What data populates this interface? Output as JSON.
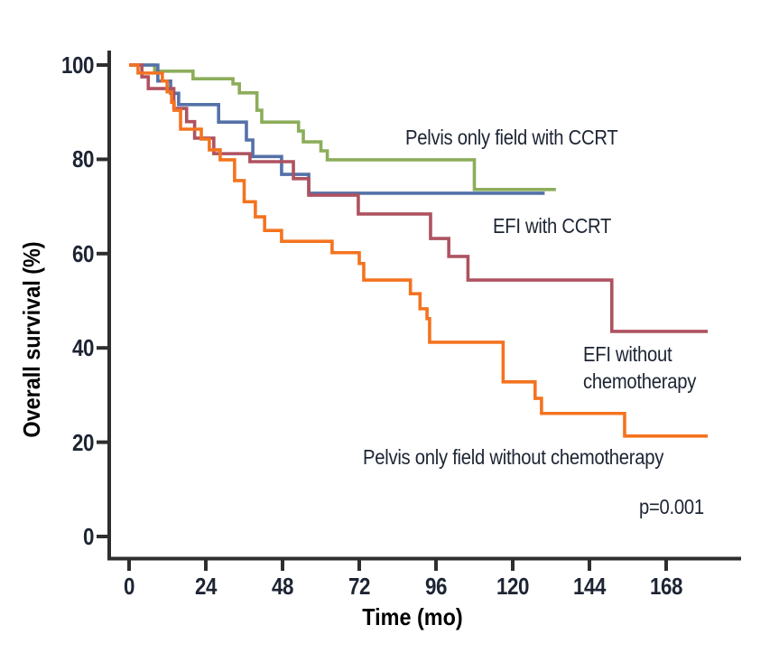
{
  "figure": {
    "background": "#ffffff",
    "text_color": "#1d2433",
    "axis_color": "#2e2e2e"
  },
  "chart_data": {
    "type": "line",
    "variant": "kaplan_meier_step",
    "title": "",
    "xlabel": "Time (mo)",
    "ylabel": "Overall survival (%)",
    "x_units": "months",
    "y_units": "percent",
    "xlim": [
      0,
      192
    ],
    "ylim": [
      0,
      100
    ],
    "xticks": [
      0,
      24,
      48,
      72,
      96,
      120,
      144,
      168
    ],
    "yticks": [
      0,
      20,
      40,
      60,
      80,
      100
    ],
    "grid": false,
    "legend_position": "inline-annotations",
    "p_value": "p=0.001",
    "series": [
      {
        "name": "Pelvis only field with CCRT",
        "slug": "pelvis-only-field-with-ccrt",
        "color": "#8CAD5A",
        "points": [
          [
            0,
            100
          ],
          [
            8,
            98.7
          ],
          [
            20,
            97.1
          ],
          [
            32.5,
            96
          ],
          [
            34.5,
            94.1
          ],
          [
            40,
            90.4
          ],
          [
            41.5,
            87.9
          ],
          [
            53,
            86
          ],
          [
            54.5,
            83.7
          ],
          [
            60,
            81.8
          ],
          [
            62,
            79.9
          ],
          [
            108,
            73.6
          ],
          [
            133.5,
            73.6
          ]
        ]
      },
      {
        "name": "EFI with CCRT",
        "slug": "efi-with-ccrt",
        "color": "#5471A8",
        "points": [
          [
            0,
            100
          ],
          [
            9,
            96.6
          ],
          [
            13,
            94
          ],
          [
            15.5,
            91.6
          ],
          [
            28,
            87.9
          ],
          [
            36.7,
            84.1
          ],
          [
            38.7,
            80.6
          ],
          [
            47.7,
            76.8
          ],
          [
            56.2,
            72.8
          ],
          [
            130,
            72.8
          ]
        ]
      },
      {
        "name": "EFI without chemotherapy",
        "slug": "efi-without-chemotherapy",
        "color": "#AF5260",
        "points": [
          [
            0,
            100
          ],
          [
            4,
            97.5
          ],
          [
            6,
            95
          ],
          [
            14,
            90.8
          ],
          [
            18,
            88
          ],
          [
            20.5,
            84.5
          ],
          [
            26.5,
            81.2
          ],
          [
            37.8,
            79.5
          ],
          [
            51.4,
            75.9
          ],
          [
            56.2,
            72.4
          ],
          [
            71.7,
            68.4
          ],
          [
            94.3,
            63.2
          ],
          [
            100,
            59.4
          ],
          [
            106,
            54.4
          ],
          [
            151,
            43.5
          ],
          [
            181,
            43.5
          ]
        ]
      },
      {
        "name": "Pelvis only field without chemotherapy",
        "slug": "pelvis-only-field-without-chemotherapy",
        "color": "#F4731F",
        "points": [
          [
            0,
            100
          ],
          [
            2.8,
            98.3
          ],
          [
            10.4,
            96.6
          ],
          [
            11.9,
            94.3
          ],
          [
            13.3,
            92.1
          ],
          [
            14.1,
            90.4
          ],
          [
            16.1,
            86.4
          ],
          [
            22.6,
            84.3
          ],
          [
            25.1,
            82
          ],
          [
            28.5,
            79.9
          ],
          [
            33,
            75.5
          ],
          [
            36,
            71
          ],
          [
            39.5,
            67.8
          ],
          [
            42.4,
            64.9
          ],
          [
            47.7,
            62.6
          ],
          [
            63.5,
            60.2
          ],
          [
            72,
            57.9
          ],
          [
            73.4,
            54.4
          ],
          [
            88,
            51.5
          ],
          [
            91,
            48.3
          ],
          [
            93.2,
            46.2
          ],
          [
            94,
            41.2
          ],
          [
            117,
            32.8
          ],
          [
            127,
            29.3
          ],
          [
            129,
            26.1
          ],
          [
            155,
            21.3
          ],
          [
            181,
            21.3
          ]
        ]
      }
    ],
    "annotations": [
      {
        "slug": "pelvis-only-field-with-ccrt",
        "text": "Pelvis only field with CCRT",
        "x": 86.4,
        "y": 87.4
      },
      {
        "slug": "efi-with-ccrt",
        "text": "EFI with CCRT",
        "x": 113.8,
        "y": 68.6
      },
      {
        "slug": "efi-without-chemotherapy",
        "text": "EFI without\nchemotherapy",
        "x": 142,
        "y": 41.4
      },
      {
        "slug": "pelvis-only-field-without-chemotherapy",
        "text": "Pelvis only field without chemotherapy",
        "x": 73.1,
        "y": 19.5
      },
      {
        "slug": "p-value",
        "text": "p=0.001",
        "x": 159.5,
        "y": 9
      }
    ]
  }
}
